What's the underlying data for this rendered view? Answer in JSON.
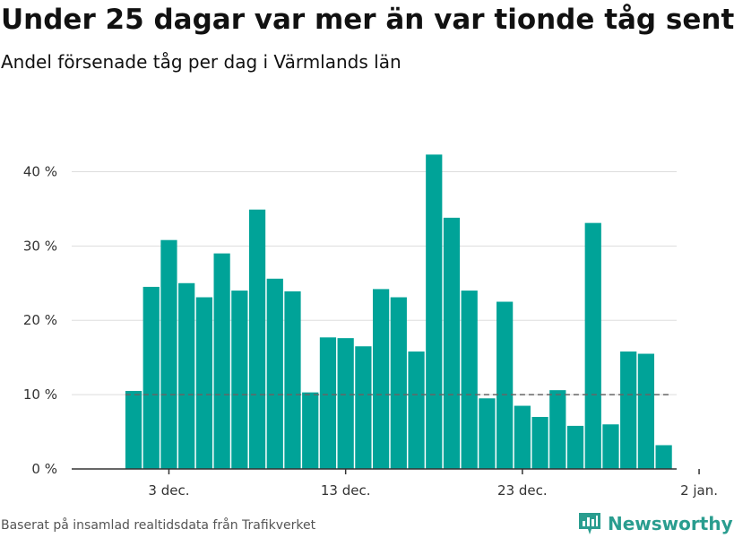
{
  "header": {
    "title": "Under 25 dagar var mer än var tionde tåg sent",
    "subtitle": "Andel försenade tåg per dag i Värmlands län"
  },
  "footer": {
    "source": "Baserat på insamlad realtidsdata från Trafikverket",
    "brand": "Newsworthy",
    "brand_icon": "chart-logo-icon"
  },
  "colors": {
    "bar": "#00a398",
    "grid": "#dddddd",
    "axis": "#333333",
    "reference": "#666666",
    "brand": "#2a9d8f"
  },
  "chart_data": {
    "type": "bar",
    "title": "Under 25 dagar var mer än var tionde tåg sent",
    "subtitle": "Andel försenade tåg per dag i Värmlands län",
    "xlabel": "",
    "ylabel": "",
    "x": [
      "2023-12-01",
      "2023-12-02",
      "2023-12-03",
      "2023-12-04",
      "2023-12-05",
      "2023-12-06",
      "2023-12-07",
      "2023-12-08",
      "2023-12-09",
      "2023-12-10",
      "2023-12-11",
      "2023-12-12",
      "2023-12-13",
      "2023-12-14",
      "2023-12-15",
      "2023-12-16",
      "2023-12-17",
      "2023-12-18",
      "2023-12-19",
      "2023-12-20",
      "2023-12-21",
      "2023-12-22",
      "2023-12-23",
      "2023-12-24",
      "2023-12-25",
      "2023-12-26",
      "2023-12-27",
      "2023-12-28",
      "2023-12-29",
      "2023-12-30",
      "2023-12-31"
    ],
    "values": [
      10.5,
      24.5,
      30.8,
      25.0,
      23.1,
      29.0,
      24.0,
      34.9,
      25.6,
      23.9,
      10.3,
      17.7,
      17.6,
      16.5,
      24.2,
      23.1,
      15.8,
      42.3,
      33.8,
      24.0,
      9.5,
      22.5,
      8.5,
      7.0,
      10.6,
      5.8,
      33.1,
      6.0,
      15.8,
      15.5,
      3.2
    ],
    "reference_line": 10,
    "ylim": [
      0,
      45
    ],
    "yticks": [
      0,
      10,
      20,
      30,
      40
    ],
    "ytick_labels": [
      "0 %",
      "10 %",
      "20 %",
      "30 %",
      "40 %"
    ],
    "xtick_dates": [
      "2023-12-03",
      "2023-12-13",
      "2023-12-23",
      "2024-01-02"
    ],
    "xtick_labels": [
      "3 dec.",
      "13 dec.",
      "23 dec.",
      "2 jan."
    ],
    "grid": true,
    "legend": "none"
  }
}
